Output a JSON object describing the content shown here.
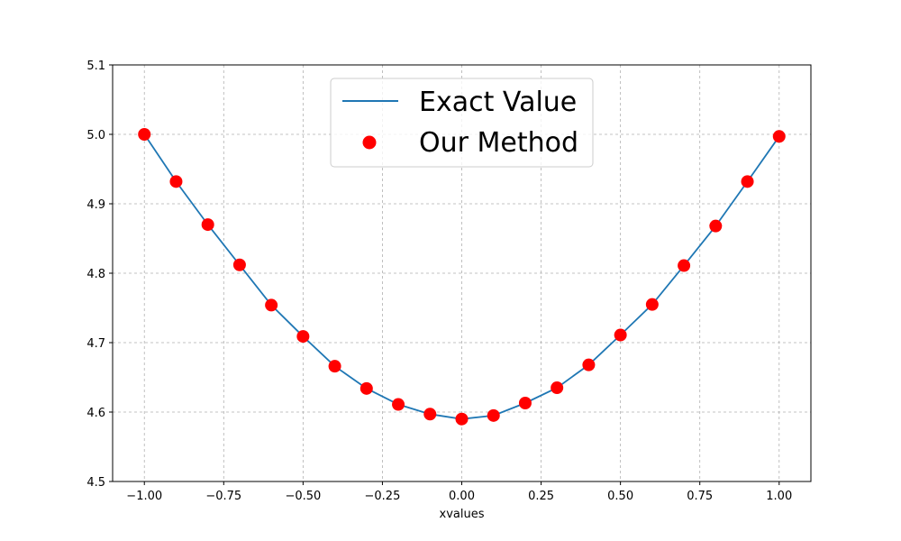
{
  "chart_data": {
    "type": "line",
    "title": "",
    "xlabel": "xvalues",
    "ylabel": "",
    "xlim": [
      -1.1,
      1.1
    ],
    "ylim": [
      4.5,
      5.1
    ],
    "x_ticks": [
      -1.0,
      -0.75,
      -0.5,
      -0.25,
      0.0,
      0.25,
      0.5,
      0.75,
      1.0
    ],
    "x_tick_labels": [
      "−1.00",
      "−0.75",
      "−0.50",
      "−0.25",
      "0.00",
      "0.25",
      "0.50",
      "0.75",
      "1.00"
    ],
    "y_ticks": [
      4.5,
      4.6,
      4.7,
      4.8,
      4.9,
      5.0,
      5.1
    ],
    "y_tick_labels": [
      "4.5",
      "4.6",
      "4.7",
      "4.8",
      "4.9",
      "5.0",
      "5.1"
    ],
    "grid": true,
    "legend_position": "top-center",
    "series": [
      {
        "name": "Exact Value",
        "type": "line",
        "color": "#1f77b4",
        "x": [
          -1.0,
          -0.9,
          -0.8,
          -0.7,
          -0.6,
          -0.5,
          -0.4,
          -0.3,
          -0.2,
          -0.1,
          0.0,
          0.1,
          0.2,
          0.3,
          0.4,
          0.5,
          0.6,
          0.7,
          0.8,
          0.9,
          1.0
        ],
        "y": [
          5.0,
          4.932,
          4.87,
          4.812,
          4.754,
          4.709,
          4.666,
          4.634,
          4.611,
          4.597,
          4.59,
          4.595,
          4.613,
          4.635,
          4.668,
          4.711,
          4.755,
          4.811,
          4.868,
          4.932,
          4.997
        ]
      },
      {
        "name": "Our Method",
        "type": "scatter",
        "color": "#ff0000",
        "x": [
          -1.0,
          -0.9,
          -0.8,
          -0.7,
          -0.6,
          -0.5,
          -0.4,
          -0.3,
          -0.2,
          -0.1,
          0.0,
          0.1,
          0.2,
          0.3,
          0.4,
          0.5,
          0.6,
          0.7,
          0.8,
          0.9,
          1.0
        ],
        "y": [
          5.0,
          4.932,
          4.87,
          4.812,
          4.754,
          4.709,
          4.666,
          4.634,
          4.611,
          4.597,
          4.59,
          4.595,
          4.613,
          4.635,
          4.668,
          4.711,
          4.755,
          4.811,
          4.868,
          4.932,
          4.997
        ]
      }
    ]
  }
}
